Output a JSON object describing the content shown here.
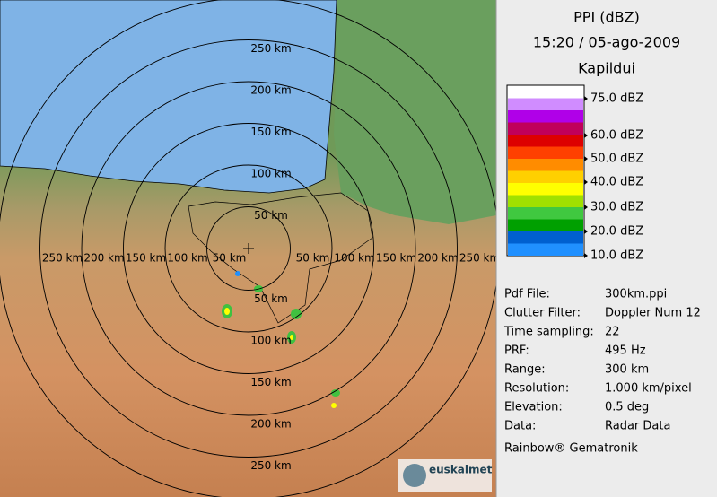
{
  "map": {
    "range_labels": {
      "top": [
        "250 km",
        "200 km",
        "150 km",
        "100 km",
        "50 km"
      ],
      "left": [
        "250 km",
        "200 km",
        "150 km",
        "100 km",
        "50 km"
      ],
      "right": [
        "50 km",
        "100 km",
        "150 km",
        "200 km",
        "250 km"
      ],
      "bottom": [
        "50 km",
        "100 km",
        "150 km",
        "200 km",
        "250 km"
      ]
    },
    "logo": "euskalmet"
  },
  "panel": {
    "title": "PPI (dBZ)",
    "datetime": "15:20 / 05-ago-2009",
    "station": "Kapildui",
    "legend": [
      "75.0 dBZ",
      "60.0 dBZ",
      "50.0 dBZ",
      "40.0 dBZ",
      "30.0 dBZ",
      "20.0 dBZ",
      "10.0 dBZ"
    ],
    "info": [
      {
        "label": "Pdf File:",
        "value": "300km.ppi"
      },
      {
        "label": "Clutter Filter:",
        "value": "Doppler Num 12"
      },
      {
        "label": "Time sampling:",
        "value": "22"
      },
      {
        "label": "PRF:",
        "value": "495 Hz"
      },
      {
        "label": "Range:",
        "value": "300 km"
      },
      {
        "label": "Resolution:",
        "value": "1.000 km/pixel"
      },
      {
        "label": "Elevation:",
        "value": "0.5 deg"
      },
      {
        "label": "Data:",
        "value": "Radar Data"
      }
    ],
    "footer": "Rainbow® Gematronik"
  }
}
